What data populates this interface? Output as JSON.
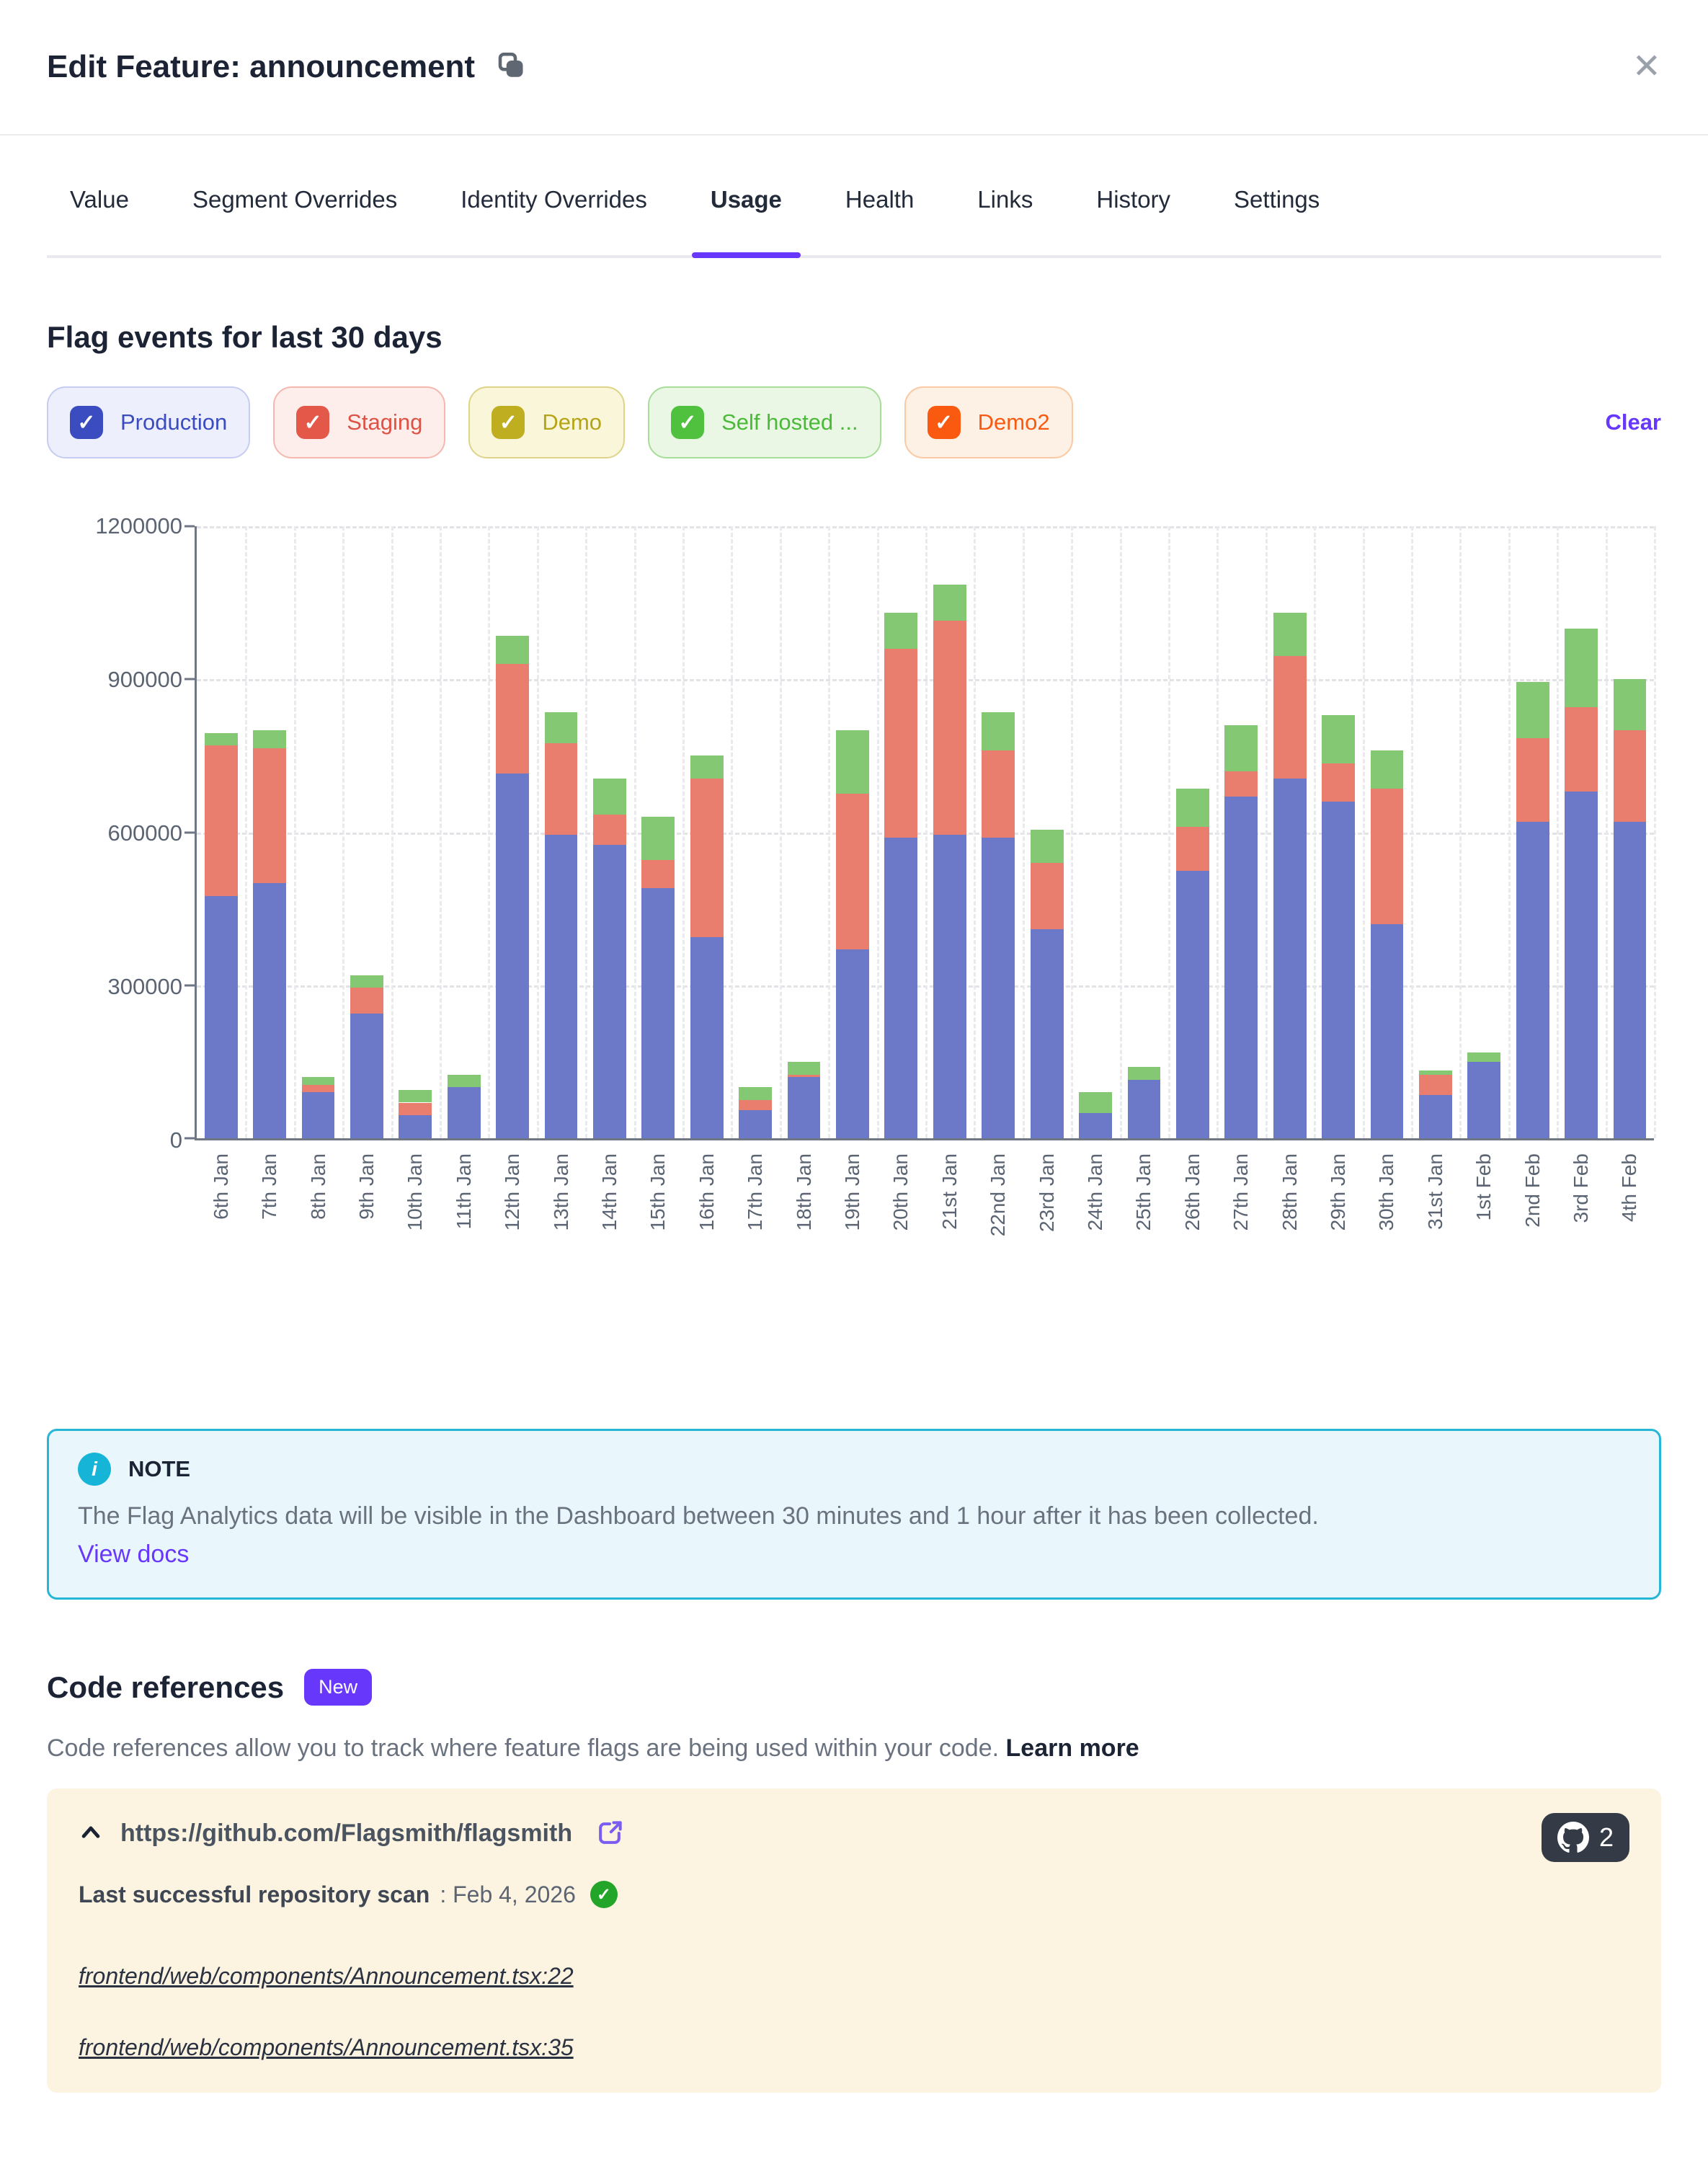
{
  "modal": {
    "title": "Edit Feature: announcement",
    "close_glyph": "✕"
  },
  "tabs": {
    "items": [
      {
        "label": "Value",
        "active": false
      },
      {
        "label": "Segment Overrides",
        "active": false
      },
      {
        "label": "Identity Overrides",
        "active": false
      },
      {
        "label": "Usage",
        "active": true
      },
      {
        "label": "Health",
        "active": false
      },
      {
        "label": "Links",
        "active": false
      },
      {
        "label": "History",
        "active": false
      },
      {
        "label": "Settings",
        "active": false
      }
    ]
  },
  "usage": {
    "heading": "Flag events for last 30 days",
    "check_glyph": "✓",
    "clear_label": "Clear",
    "environments": [
      {
        "label": "Production",
        "checked": true,
        "box": "#3b4cc0",
        "text": "#3b4cc0",
        "bg": "#edeffc",
        "border": "#c7cdf1"
      },
      {
        "label": "Staging",
        "checked": true,
        "box": "#e4584a",
        "text": "#dd5245",
        "bg": "#fdeeec",
        "border": "#f4b8af"
      },
      {
        "label": "Demo",
        "checked": true,
        "box": "#bfae20",
        "text": "#b5a418",
        "bg": "#faf6da",
        "border": "#ded489"
      },
      {
        "label": "Self hosted ...",
        "checked": true,
        "box": "#50c13e",
        "text": "#4aba38",
        "bg": "#eaf7e5",
        "border": "#a8dd99"
      },
      {
        "label": "Demo2",
        "checked": true,
        "box": "#fa5a0f",
        "text": "#f85a12",
        "bg": "#fdf0e4",
        "border": "#fbc9a2"
      }
    ]
  },
  "chart_data": {
    "type": "bar",
    "stacked": true,
    "title": "Flag events for last 30 days",
    "categories": [
      "6th Jan",
      "7th Jan",
      "8th Jan",
      "9th Jan",
      "10th Jan",
      "11th Jan",
      "12th Jan",
      "13th Jan",
      "14th Jan",
      "15th Jan",
      "16th Jan",
      "17th Jan",
      "18th Jan",
      "19th Jan",
      "20th Jan",
      "21st Jan",
      "22nd Jan",
      "23rd Jan",
      "24th Jan",
      "25th Jan",
      "26th Jan",
      "27th Jan",
      "28th Jan",
      "29th Jan",
      "30th Jan",
      "31st Jan",
      "1st Feb",
      "2nd Feb",
      "3rd Feb",
      "4th Feb"
    ],
    "series": [
      {
        "name": "Production",
        "color": "#6b79c8",
        "values": [
          475000,
          500000,
          90000,
          245000,
          45000,
          100000,
          715000,
          595000,
          575000,
          490000,
          395000,
          55000,
          120000,
          370000,
          590000,
          595000,
          590000,
          410000,
          50000,
          115000,
          525000,
          670000,
          705000,
          660000,
          420000,
          85000,
          150000,
          620000,
          680000,
          620000
        ]
      },
      {
        "name": "Staging",
        "color": "#e97e6e",
        "values": [
          295000,
          265000,
          15000,
          50000,
          25000,
          0,
          215000,
          180000,
          60000,
          55000,
          310000,
          20000,
          5000,
          305000,
          370000,
          420000,
          170000,
          130000,
          0,
          0,
          85000,
          50000,
          240000,
          75000,
          265000,
          40000,
          0,
          165000,
          165000,
          180000
        ]
      },
      {
        "name": "Self hosted ...",
        "color": "#85c873",
        "values": [
          25000,
          35000,
          15000,
          25000,
          25000,
          25000,
          55000,
          60000,
          70000,
          85000,
          45000,
          25000,
          25000,
          125000,
          70000,
          70000,
          75000,
          65000,
          40000,
          25000,
          75000,
          90000,
          85000,
          95000,
          75000,
          8000,
          18000,
          110000,
          155000,
          100000
        ]
      }
    ],
    "ylim": [
      0,
      1200000
    ],
    "yticks": [
      0,
      300000,
      600000,
      900000,
      1200000
    ],
    "grid": "dashed",
    "legend_position": "top-chips"
  },
  "note": {
    "title": "NOTE",
    "info_glyph": "i",
    "body": "The Flag Analytics data will be visible in the Dashboard between 30 minutes and 1 hour after it has been collected.",
    "link_label": "View docs"
  },
  "code_references": {
    "heading": "Code references",
    "badge": "New",
    "description": "Code references allow you to track where feature flags are being used within your code.",
    "learn_more_label": "Learn more",
    "repo": {
      "url": "https://github.com/Flagsmith/flagsmith",
      "github_count": "2",
      "scan_label": "Last successful repository scan",
      "scan_value": ": Feb 4, 2026",
      "links": [
        "frontend/web/components/Announcement.tsx:22",
        "frontend/web/components/Announcement.tsx:35"
      ]
    }
  }
}
